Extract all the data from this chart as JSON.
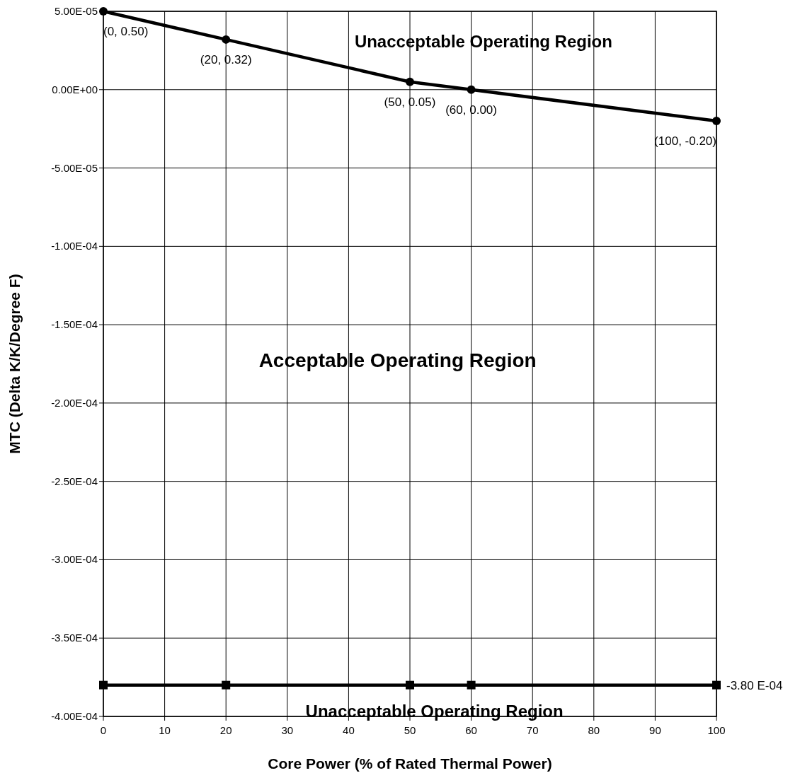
{
  "chart_data": {
    "type": "line",
    "xlabel": "Core Power (% of Rated Thermal Power)",
    "ylabel": "MTC (Delta K/K/Degree F)",
    "series": [
      {
        "color": "#000000",
        "marker": "circle",
        "x": [
          0,
          20,
          50,
          60,
          100
        ],
        "values": [
          5e-05,
          3.2e-05,
          5e-06,
          0,
          -2e-05
        ]
      },
      {
        "color": "#000000",
        "marker": "square",
        "x": [
          0,
          20,
          50,
          60,
          100
        ],
        "values": [
          -0.00038,
          -0.00038,
          -0.00038,
          -0.00038,
          -0.00038
        ]
      }
    ],
    "xlim": [
      0,
      100
    ],
    "xticks": [
      0,
      10,
      20,
      30,
      40,
      50,
      60,
      70,
      80,
      90,
      100
    ],
    "ylim": [
      -0.0004,
      5e-05
    ],
    "yticks": [
      {
        "value": 5e-05,
        "label": "5.00E-05"
      },
      {
        "value": 0,
        "label": "0.00E+00"
      },
      {
        "value": -5e-05,
        "label": "-5.00E-05"
      },
      {
        "value": -0.0001,
        "label": "-1.00E-04"
      },
      {
        "value": -0.00015,
        "label": "-1.50E-04"
      },
      {
        "value": -0.0002,
        "label": "-2.00E-04"
      },
      {
        "value": -0.00025,
        "label": "-2.50E-04"
      },
      {
        "value": -0.0003,
        "label": "-3.00E-04"
      },
      {
        "value": -0.00035,
        "label": "-3.50E-04"
      },
      {
        "value": -0.0004,
        "label": "-4.00E-04"
      }
    ],
    "grid": true,
    "line_style": "solid",
    "annotations": [
      "Unacceptable Operating Region",
      "Acceptable Operating Region",
      "Unacceptable Operating Region",
      {
        "text": "(0, 0.50)",
        "x": 0,
        "y": 5e-05
      },
      {
        "text": "(20, 0.32)",
        "x": 20,
        "y": 3.2e-05
      },
      {
        "text": "(50, 0.05)",
        "x": 50,
        "y": 5e-06
      },
      {
        "text": "(60, 0.00)",
        "x": 60,
        "y": 0
      },
      {
        "text": "(100, -0.20)",
        "x": 100,
        "y": -2e-05
      },
      {
        "text": "-3.80 E-04",
        "x": 100,
        "y": -0.00038
      }
    ]
  }
}
